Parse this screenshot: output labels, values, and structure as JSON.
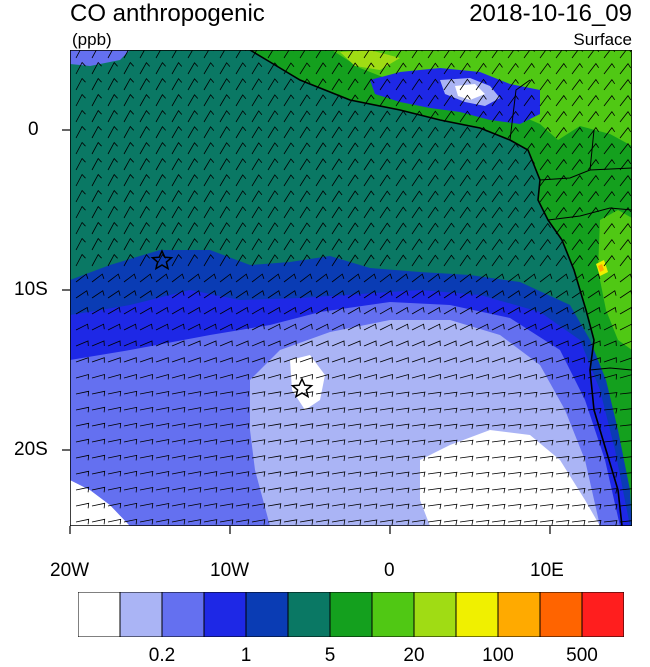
{
  "header": {
    "title": "CO anthropogenic",
    "units": "(ppb)",
    "datetime": "2018-10-16_09",
    "level": "Surface"
  },
  "map": {
    "lon_range": [
      -20,
      15
    ],
    "lat_range": [
      -25,
      5
    ],
    "x_ticks": [
      "20W",
      "10W",
      "0",
      "10E"
    ],
    "y_ticks": [
      "0",
      "10S",
      "20S"
    ],
    "markers": [
      {
        "name": "star-marker",
        "lon": -14.3,
        "lat": -8.0
      },
      {
        "name": "star-marker",
        "lon": -5.7,
        "lat": -15.9
      }
    ]
  },
  "colorbar": {
    "colors": [
      "#ffffff",
      "#aab4f5",
      "#6470f0",
      "#1e28e6",
      "#0a3cb4",
      "#0a7864",
      "#14a01e",
      "#50c814",
      "#a0dc14",
      "#f0f000",
      "#ffaa00",
      "#ff6400",
      "#ff1e1e"
    ],
    "labels": [
      "0.2",
      "1",
      "5",
      "20",
      "100",
      "500"
    ]
  },
  "colors": {
    "ocean_background": "#0a7864",
    "land_green": "#14a01e",
    "wind_barb": "#000000"
  }
}
